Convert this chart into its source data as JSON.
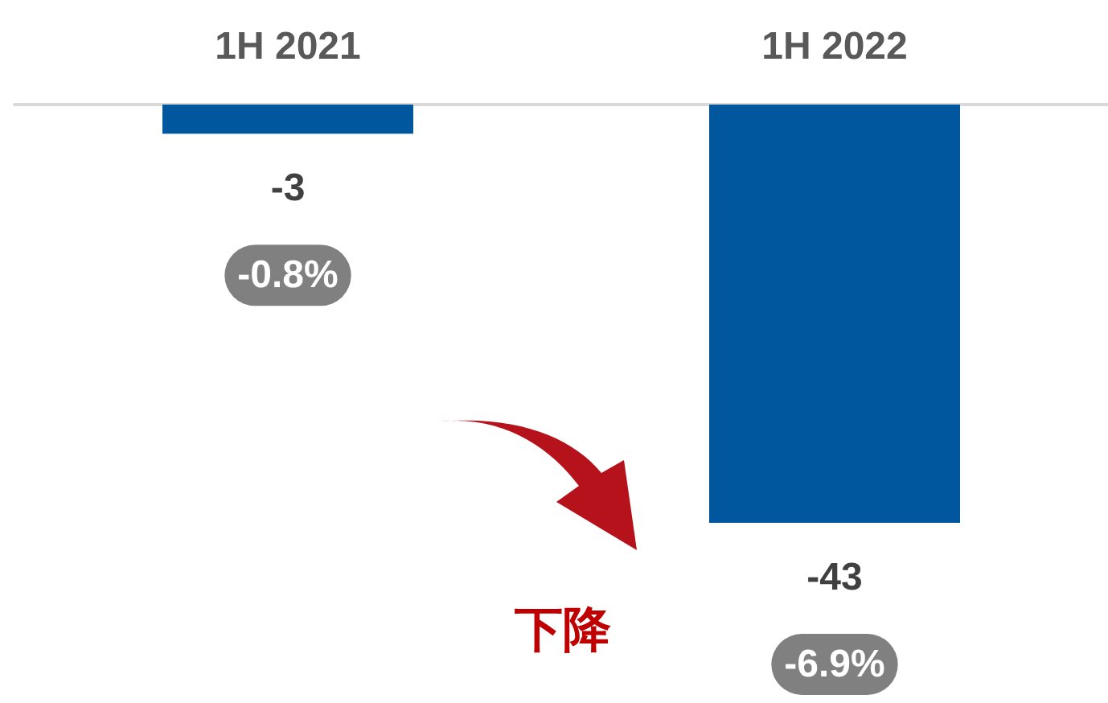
{
  "chart_data": {
    "type": "bar",
    "categories": [
      "1H 2021",
      "1H 2022"
    ],
    "values": [
      -3,
      -43
    ],
    "color": "#00579e",
    "data_labels": true,
    "annotations": [
      "-0.8%",
      "-6.9%",
      "下降"
    ]
  }
}
